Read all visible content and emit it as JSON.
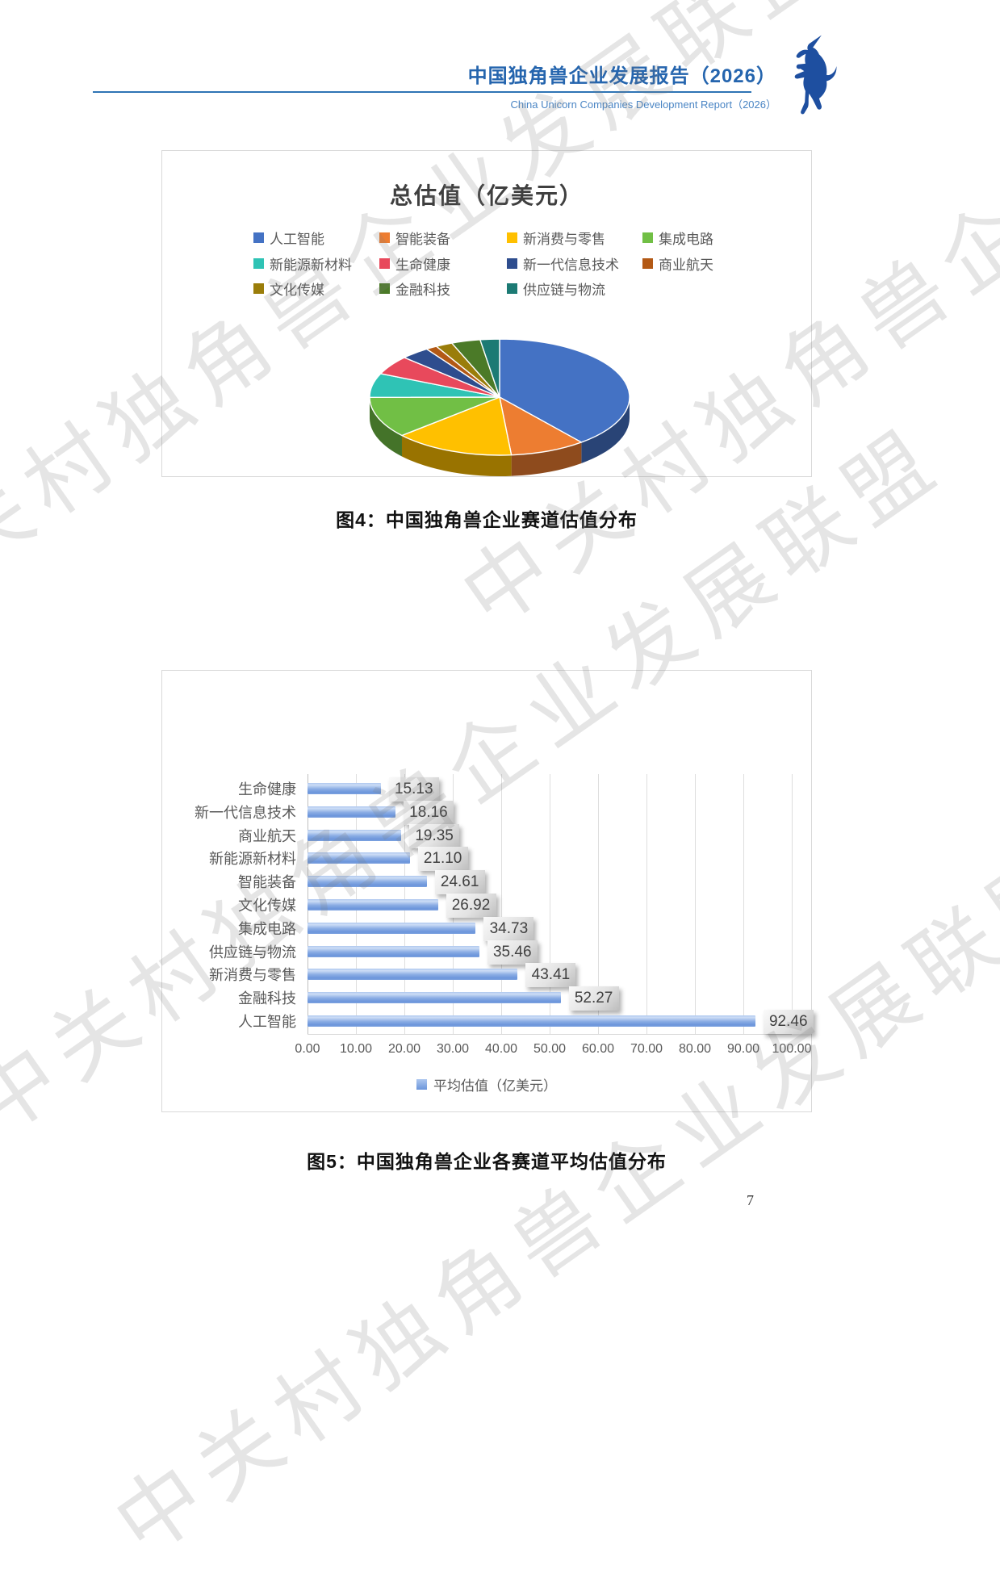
{
  "page": {
    "number": "7"
  },
  "watermark_text": "中关村独角兽企业发展联盟",
  "header": {
    "title_cn": "中国独角兽企业发展报告（2026）",
    "title_en": "China Unicorn Companies Development Report（2026）",
    "accent_color": "#2E74B5",
    "logo": "unicorn-logo"
  },
  "figure4": {
    "caption": "图4：中国独角兽企业赛道估值分布"
  },
  "figure5": {
    "caption": "图5：中国独角兽企业各赛道平均估值分布"
  },
  "chart_data": [
    {
      "type": "pie",
      "style": "3d",
      "title": "总估值（亿美元）",
      "legend_position": "top",
      "value_unit": "percent-of-total (estimated from slice angles)",
      "slices": [
        {
          "label": "人工智能",
          "value": 39.2,
          "color": "#4472C4"
        },
        {
          "label": "智能装备",
          "value": 9.4,
          "color": "#ED7D31"
        },
        {
          "label": "新消费与零售",
          "value": 15.0,
          "color": "#FFC000"
        },
        {
          "label": "集成电路",
          "value": 11.4,
          "color": "#71BF45"
        },
        {
          "label": "新能源新材料",
          "value": 6.7,
          "color": "#2FC3B5"
        },
        {
          "label": "生命健康",
          "value": 5.3,
          "color": "#E8495C"
        },
        {
          "label": "新一代信息技术",
          "value": 3.6,
          "color": "#2E4D8E"
        },
        {
          "label": "商业航天",
          "value": 1.4,
          "color": "#B35915"
        },
        {
          "label": "文化传媒",
          "value": 2.1,
          "color": "#9A7D0A"
        },
        {
          "label": "金融科技",
          "value": 3.6,
          "color": "#4B7A28"
        },
        {
          "label": "供应链与物流",
          "value": 2.4,
          "color": "#1C7A74"
        }
      ]
    },
    {
      "type": "bar",
      "orientation": "horizontal",
      "legend": "平均估值（亿美元）",
      "xlim": [
        0,
        100
      ],
      "xticks": [
        "0.00",
        "10.00",
        "20.00",
        "30.00",
        "40.00",
        "50.00",
        "60.00",
        "70.00",
        "80.00",
        "90.00",
        "100.00"
      ],
      "grid": true,
      "bar_color": "#7CA3E0",
      "categories": [
        "生命健康",
        "新一代信息技术",
        "商业航天",
        "新能源新材料",
        "智能装备",
        "文化传媒",
        "集成电路",
        "供应链与物流",
        "新消费与零售",
        "金融科技",
        "人工智能"
      ],
      "values": [
        15.13,
        18.16,
        19.35,
        21.1,
        24.61,
        26.92,
        34.73,
        35.46,
        43.41,
        52.27,
        92.46
      ]
    }
  ]
}
